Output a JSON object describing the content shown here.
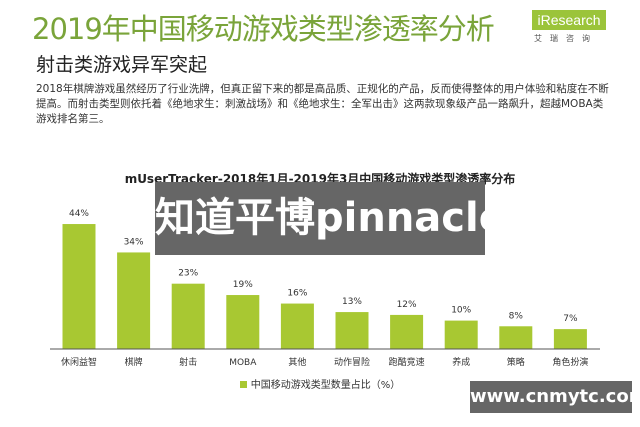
{
  "header": {
    "title": "2019年中国移动游戏类型渗透率分析",
    "subtitle": "射击类游戏异军突起",
    "paragraph": "2018年棋牌游戏虽然经历了行业洗牌，但真正留下来的都是高品质、正规化的产品，反而使得整体的用户体验和粘度在不断提高。而射击类型则依托着《绝地求生：刺激战场》和《绝地求生：全军出击》这两款现象级产品一路飙升，超越MOBA类游戏排名第三。"
  },
  "logo": {
    "text": "iResearch",
    "sub": "艾瑞咨询"
  },
  "overlay": {
    "text": "知道平博pinnacle"
  },
  "watermark": {
    "text": "www.cnmytc.com"
  },
  "colors": {
    "bar": "#a8c832",
    "title": "#7aa43a"
  },
  "chart_data": {
    "type": "bar",
    "title": "mUserTracker-2018年1月-2019年3月中国移动游戏类型渗透率分布",
    "categories": [
      "休闲益智",
      "棋牌",
      "射击",
      "MOBA",
      "其他",
      "动作冒险",
      "跑酷竞速",
      "养成",
      "策略",
      "角色扮演"
    ],
    "series": [
      {
        "name": "中国移动游戏类型数量占比（%）",
        "values": [
          44,
          34,
          23,
          19,
          16,
          13,
          12,
          10,
          8,
          7
        ]
      }
    ],
    "data_labels": [
      "44%",
      "34%",
      "23%",
      "19%",
      "16%",
      "13%",
      "12%",
      "10%",
      "8%",
      "7%"
    ],
    "ylim": [
      0,
      50
    ],
    "grid": false,
    "legend": "bottom"
  }
}
